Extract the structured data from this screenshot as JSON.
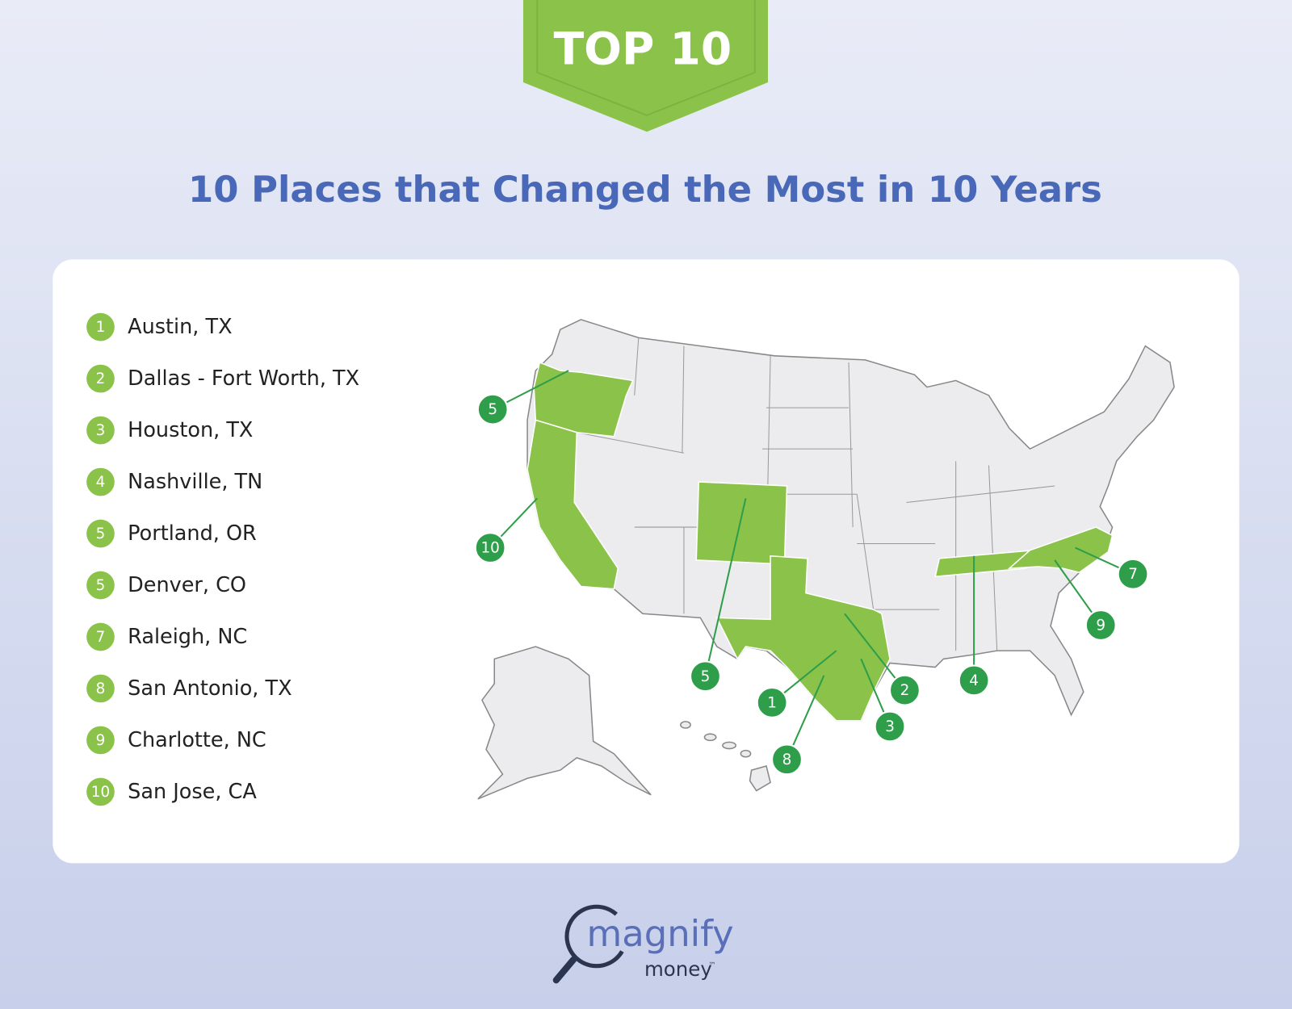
{
  "badge": "TOP 10",
  "title": "10 Places that Changed the Most in 10 Years",
  "list": [
    {
      "rank": 1,
      "place": "Austin, TX"
    },
    {
      "rank": 2,
      "place": "Dallas - Fort Worth, TX"
    },
    {
      "rank": 3,
      "place": "Houston, TX"
    },
    {
      "rank": 4,
      "place": "Nashville, TN"
    },
    {
      "rank": 5,
      "place": "Portland, OR"
    },
    {
      "rank": 5,
      "place": "Denver, CO"
    },
    {
      "rank": 7,
      "place": "Raleigh, NC"
    },
    {
      "rank": 8,
      "place": "San Antonio, TX"
    },
    {
      "rank": 9,
      "place": "Charlotte, NC"
    },
    {
      "rank": 10,
      "place": "San Jose, CA"
    }
  ],
  "map_callouts": [
    {
      "label": 5
    },
    {
      "label": 10
    },
    {
      "label": 5
    },
    {
      "label": 1
    },
    {
      "label": 8
    },
    {
      "label": 3
    },
    {
      "label": 2
    },
    {
      "label": 4
    },
    {
      "label": 9
    },
    {
      "label": 7
    }
  ],
  "logo": {
    "name": "magnify",
    "sub": "money",
    "mark": "™"
  }
}
